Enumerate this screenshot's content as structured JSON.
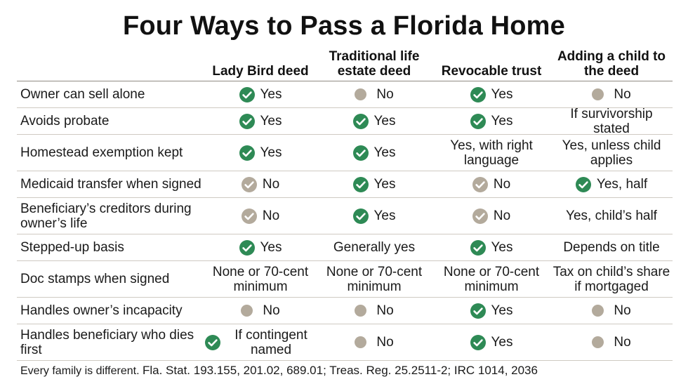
{
  "title": "Four Ways to Pass a Florida Home",
  "colors": {
    "check_green": "#2e8a55",
    "check_gray": "#b3aa9c",
    "dot_gray": "#b3aa9c",
    "rule": "#cfcac2"
  },
  "columns": [
    "Lady Bird deed",
    "Traditional life estate deed",
    "Revocable trust",
    "Adding a child to the deed"
  ],
  "rows": [
    {
      "label": "Owner can sell alone",
      "cells": [
        {
          "icon": "green-check-icon",
          "text": "Yes"
        },
        {
          "icon": "gray-dot-icon",
          "text": "No"
        },
        {
          "icon": "green-check-icon",
          "text": "Yes"
        },
        {
          "icon": "gray-dot-icon",
          "text": "No"
        }
      ]
    },
    {
      "label": "Avoids probate",
      "cells": [
        {
          "icon": "green-check-icon",
          "text": "Yes"
        },
        {
          "icon": "green-check-icon",
          "text": "Yes"
        },
        {
          "icon": "green-check-icon",
          "text": "Yes"
        },
        {
          "icon": "none",
          "text": "If survivorship stated"
        }
      ]
    },
    {
      "label": "Homestead exemption kept",
      "cells": [
        {
          "icon": "green-check-icon",
          "text": "Yes"
        },
        {
          "icon": "green-check-icon",
          "text": "Yes"
        },
        {
          "icon": "none",
          "text": "Yes, with right language"
        },
        {
          "icon": "none",
          "text": "Yes, unless child applies"
        }
      ]
    },
    {
      "label": "Medicaid transfer when signed",
      "cells": [
        {
          "icon": "gray-check-icon",
          "text": "No"
        },
        {
          "icon": "green-check-icon",
          "text": "Yes"
        },
        {
          "icon": "gray-check-icon",
          "text": "No"
        },
        {
          "icon": "green-check-icon",
          "text": "Yes, half"
        }
      ]
    },
    {
      "label": "Beneficiary’s creditors during owner’s life",
      "cells": [
        {
          "icon": "gray-check-icon",
          "text": "No"
        },
        {
          "icon": "green-check-icon",
          "text": "Yes"
        },
        {
          "icon": "gray-check-icon",
          "text": "No"
        },
        {
          "icon": "none",
          "text": "Yes, child’s half"
        }
      ]
    },
    {
      "label": "Stepped-up basis",
      "cells": [
        {
          "icon": "green-check-icon",
          "text": "Yes"
        },
        {
          "icon": "none",
          "text": "Generally yes"
        },
        {
          "icon": "green-check-icon",
          "text": "Yes"
        },
        {
          "icon": "none",
          "text": "Depends on title"
        }
      ]
    },
    {
      "label": "Doc stamps when signed",
      "cells": [
        {
          "icon": "none",
          "text": "None or 70-cent minimum"
        },
        {
          "icon": "none",
          "text": "None or 70-cent minimum"
        },
        {
          "icon": "none",
          "text": "None or 70-cent minimum"
        },
        {
          "icon": "none",
          "text": "Tax on child’s share if mortgaged"
        }
      ]
    },
    {
      "label": "Handles owner’s incapacity",
      "cells": [
        {
          "icon": "gray-dot-icon",
          "text": "No"
        },
        {
          "icon": "gray-dot-icon",
          "text": "No"
        },
        {
          "icon": "green-check-icon",
          "text": "Yes"
        },
        {
          "icon": "gray-dot-icon",
          "text": "No"
        }
      ]
    },
    {
      "label": "Handles beneficiary who dies first",
      "cells": [
        {
          "icon": "green-check-icon",
          "text": "If contingent named"
        },
        {
          "icon": "gray-dot-icon",
          "text": "No"
        },
        {
          "icon": "green-check-icon",
          "text": "Yes"
        },
        {
          "icon": "gray-dot-icon",
          "text": "No"
        }
      ]
    }
  ],
  "footer": {
    "note": "Every family is different.",
    "sources": "Fla. Stat. 193.155, 201.02, 689.01; Treas. Reg. 25.2511-2; IRC 1014, 2036"
  }
}
